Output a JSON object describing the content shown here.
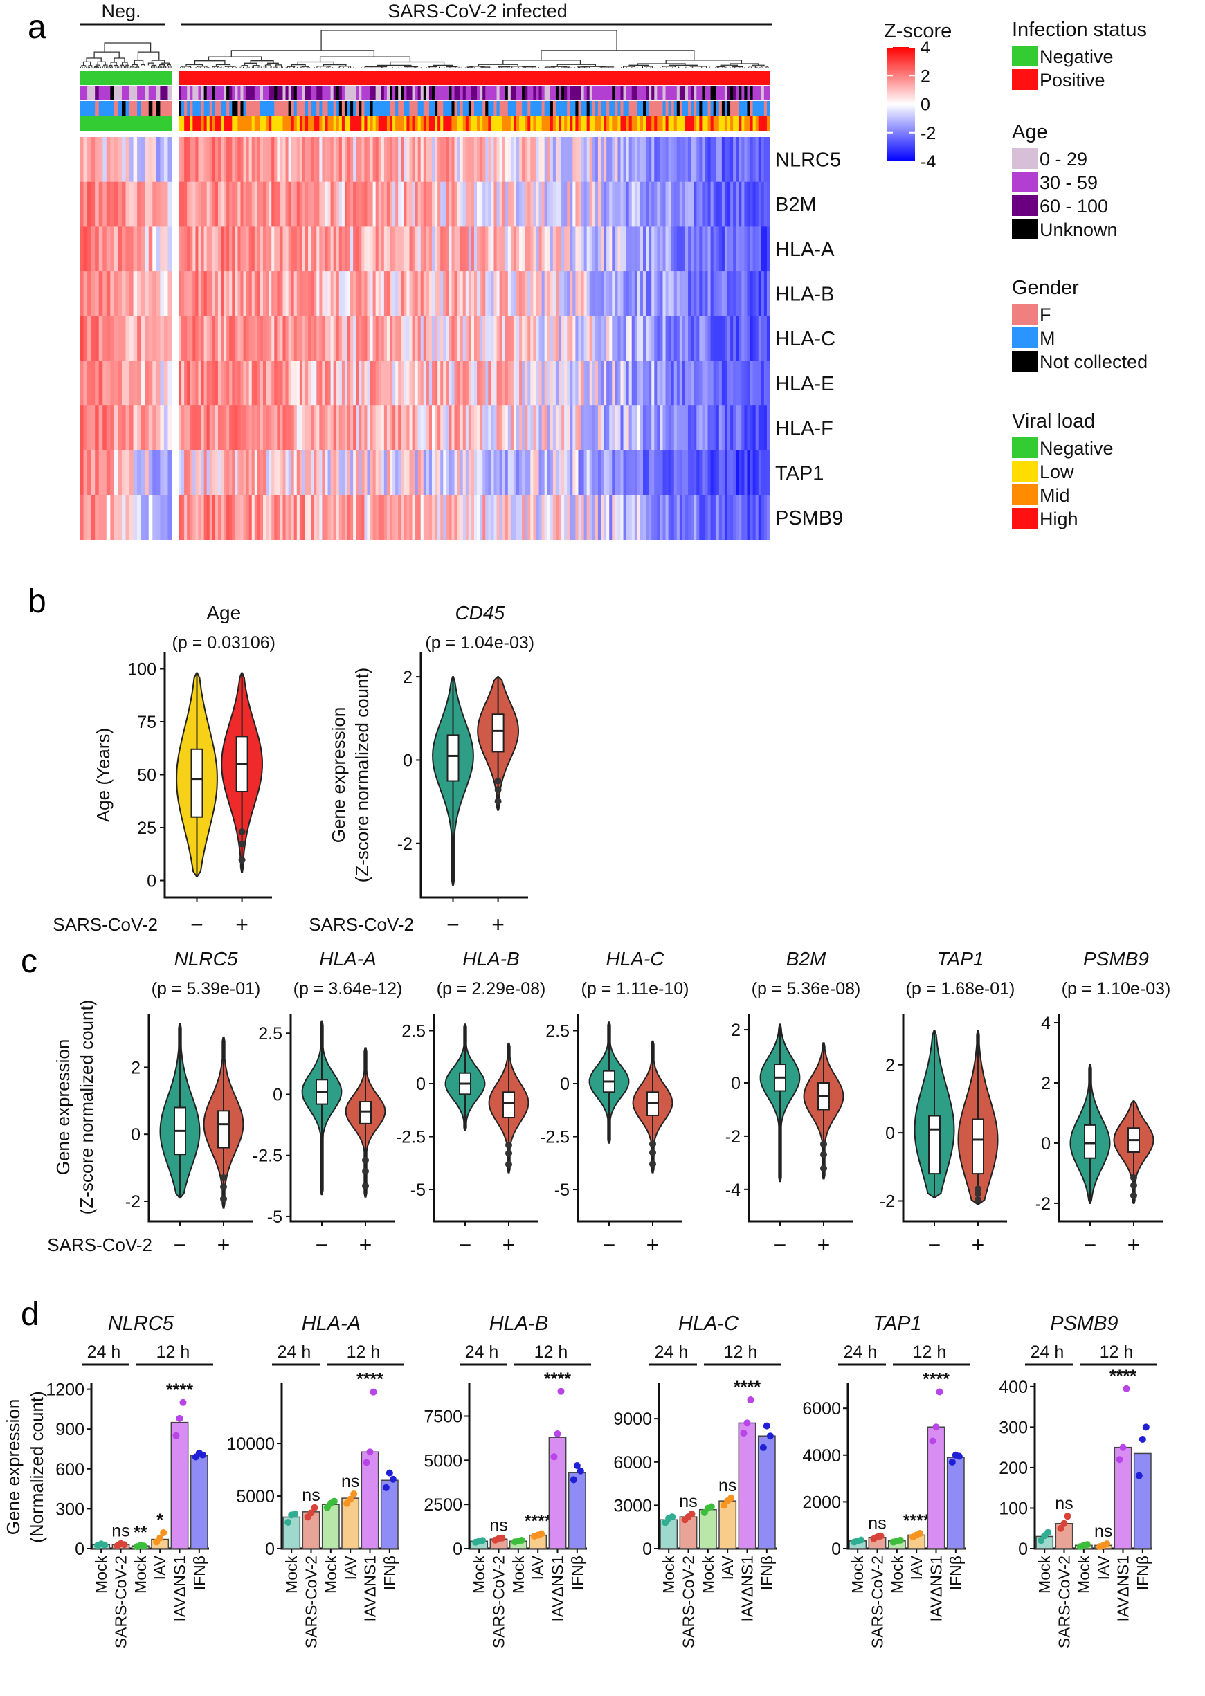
{
  "panels": {
    "a": "a",
    "b": "b",
    "c": "c",
    "d": "d"
  },
  "chart_data": [
    {
      "type": "heatmap",
      "panel": "a",
      "column_groups": [
        {
          "label": "Neg."
        },
        {
          "label": "SARS-CoV-2 infected"
        }
      ],
      "rows": [
        "NLRC5",
        "B2M",
        "HLA-A",
        "HLA-B",
        "HLA-C",
        "HLA-E",
        "HLA-F",
        "TAP1",
        "PSMB9"
      ],
      "colorbar": {
        "title": "Z-score",
        "ticks": [
          4,
          2,
          0,
          -2,
          -4
        ],
        "colors": [
          "#ff0000",
          "#ffffff",
          "#0000ff"
        ]
      },
      "legends": [
        {
          "title": "Infection status",
          "items": [
            {
              "label": "Negative",
              "color": "#33cc33"
            },
            {
              "label": "Positive",
              "color": "#ff1111"
            }
          ]
        },
        {
          "title": "Age",
          "items": [
            {
              "label": "0 - 29",
              "color": "#d8bfd8"
            },
            {
              "label": "30 - 59",
              "color": "#b23fd1"
            },
            {
              "label": "60 - 100",
              "color": "#6a0080"
            },
            {
              "label": "Unknown",
              "color": "#000000"
            }
          ]
        },
        {
          "title": "Gender",
          "items": [
            {
              "label": "F",
              "color": "#f08080"
            },
            {
              "label": "M",
              "color": "#2b95ff"
            },
            {
              "label": "Not collected",
              "color": "#000000"
            }
          ]
        },
        {
          "title": "Viral load",
          "items": [
            {
              "label": "Negative",
              "color": "#33cc33"
            },
            {
              "label": "Low",
              "color": "#ffdd00"
            },
            {
              "label": "Mid",
              "color": "#ff8c00"
            },
            {
              "label": "High",
              "color": "#ff1111"
            }
          ]
        }
      ]
    },
    {
      "type": "violin",
      "panel": "b",
      "plots": [
        {
          "title": "Age",
          "italic": false,
          "pvalue": "(p = 0.03106)",
          "ylabel": [
            "Age (Years)"
          ],
          "ylim": [
            -8,
            108
          ],
          "yticks": [
            "0",
            "25",
            "50",
            "75",
            "100"
          ],
          "ytick_values": [
            0,
            25,
            50,
            75,
            100
          ],
          "neg": {
            "median": 48,
            "q1": 30,
            "q3": 62,
            "min": 2,
            "max": 98
          },
          "pos": {
            "median": 55,
            "q1": 42,
            "q3": 68,
            "min": 4,
            "max": 98
          },
          "colors": [
            "#f7d117",
            "#ee2a2a"
          ]
        },
        {
          "title": "CD45",
          "italic": true,
          "pvalue": "(p = 1.04e-03)",
          "ylabel": [
            "Gene expression",
            "(Z-score normalized count)"
          ],
          "ylim": [
            -3.3,
            2.6
          ],
          "yticks": [
            "-2",
            "0",
            "2"
          ],
          "ytick_values": [
            -2,
            0,
            2
          ],
          "neg": {
            "median": 0.1,
            "q1": -0.5,
            "q3": 0.6,
            "min": -3.0,
            "max": 2.0
          },
          "pos": {
            "median": 0.7,
            "q1": 0.2,
            "q3": 1.1,
            "min": -1.2,
            "max": 2.0
          },
          "colors": [
            "#2f9e86",
            "#cf5a48"
          ]
        }
      ],
      "xlabel": "SARS-CoV-2",
      "xticks": [
        "−",
        "+"
      ]
    },
    {
      "type": "violin",
      "panel": "c",
      "plots": [
        {
          "title": "NLRC5",
          "pvalue": "(p = 5.39e-01)",
          "ylim": [
            -2.6,
            3.6
          ],
          "yticks": [
            "-2",
            "0",
            "2"
          ],
          "ytick_values": [
            -2,
            0,
            2
          ],
          "neg": {
            "median": 0.1,
            "q1": -0.6,
            "q3": 0.8,
            "min": -1.9,
            "max": 3.3
          },
          "pos": {
            "median": 0.3,
            "q1": -0.4,
            "q3": 0.7,
            "min": -2.2,
            "max": 2.9
          }
        },
        {
          "title": "HLA-A",
          "pvalue": "(p = 3.64e-12)",
          "ylim": [
            -5.2,
            3.3
          ],
          "yticks": [
            "2.5",
            "0",
            "-2.5",
            "-5"
          ],
          "ytick_values": [
            2.5,
            0,
            -2.5,
            -5
          ],
          "neg": {
            "median": 0.1,
            "q1": -0.4,
            "q3": 0.6,
            "min": -4.1,
            "max": 3.0
          },
          "pos": {
            "median": -0.7,
            "q1": -1.2,
            "q3": -0.3,
            "min": -4.2,
            "max": 1.9
          }
        },
        {
          "title": "HLA-B",
          "pvalue": "(p = 2.29e-08)",
          "ylim": [
            -6.5,
            3.3
          ],
          "yticks": [
            "2.5",
            "0",
            "-2.5",
            "-5"
          ],
          "ytick_values": [
            2.5,
            0,
            -2.5,
            -5
          ],
          "neg": {
            "median": 0.0,
            "q1": -0.5,
            "q3": 0.5,
            "min": -2.2,
            "max": 2.8
          },
          "pos": {
            "median": -0.9,
            "q1": -1.6,
            "q3": -0.4,
            "min": -4.2,
            "max": 1.9
          }
        },
        {
          "title": "HLA-C",
          "pvalue": "(p = 1.11e-10)",
          "ylim": [
            -6.5,
            3.3
          ],
          "yticks": [
            "2.5",
            "0",
            "-2.5",
            "-5"
          ],
          "ytick_values": [
            2.5,
            0,
            -2.5,
            -5
          ],
          "neg": {
            "median": 0.1,
            "q1": -0.4,
            "q3": 0.6,
            "min": -2.8,
            "max": 2.9
          },
          "pos": {
            "median": -0.9,
            "q1": -1.5,
            "q3": -0.4,
            "min": -4.2,
            "max": 2.0
          }
        },
        {
          "title": "B2M",
          "pvalue": "(p = 5.36e-08)",
          "ylim": [
            -5.2,
            2.6
          ],
          "yticks": [
            "2",
            "0",
            "-2",
            "-4"
          ],
          "ytick_values": [
            2,
            0,
            -2,
            -4
          ],
          "neg": {
            "median": 0.2,
            "q1": -0.3,
            "q3": 0.7,
            "min": -3.7,
            "max": 2.2
          },
          "pos": {
            "median": -0.5,
            "q1": -1.0,
            "q3": 0.0,
            "min": -3.6,
            "max": 1.5
          }
        },
        {
          "title": "TAP1",
          "pvalue": "(p = 1.68e-01)",
          "ylim": [
            -2.6,
            3.5
          ],
          "yticks": [
            "2",
            "0",
            "-2"
          ],
          "ytick_values": [
            2,
            0,
            -2
          ],
          "neg": {
            "median": 0.1,
            "q1": -1.2,
            "q3": 0.5,
            "min": -1.9,
            "max": 3.0
          },
          "pos": {
            "median": -0.2,
            "q1": -1.2,
            "q3": 0.4,
            "min": -2.1,
            "max": 3.0
          }
        },
        {
          "title": "PSMB9",
          "pvalue": "(p = 1.10e-03)",
          "ylim": [
            -2.6,
            4.3
          ],
          "yticks": [
            "4",
            "2",
            "0",
            "-2"
          ],
          "ytick_values": [
            4,
            2,
            0,
            -2
          ],
          "neg": {
            "median": 0.0,
            "q1": -0.5,
            "q3": 0.6,
            "min": -2.0,
            "max": 2.6
          },
          "pos": {
            "median": 0.1,
            "q1": -0.3,
            "q3": 0.5,
            "min": -2.0,
            "max": 1.4
          }
        }
      ],
      "ylabel": [
        "Gene expression",
        "(Z-score normalized count)"
      ],
      "xlabel": "SARS-CoV-2",
      "xticks": [
        "−",
        "+"
      ],
      "colors": [
        "#2f9e86",
        "#cf5a48"
      ]
    },
    {
      "type": "bar",
      "panel": "d",
      "categories": [
        "Mock",
        "SARS-CoV-2",
        "Mock",
        "IAV",
        "IAVΔNS1",
        "IFNβ"
      ],
      "category_colors": [
        "#222222",
        "#cc0000",
        "#222222",
        "#222222",
        "#222222",
        "#222222"
      ],
      "bar_colors": [
        "#9fd8cc",
        "#e8a497",
        "#b9e6a9",
        "#f8cd8c",
        "#d88df3",
        "#8f8cf5"
      ],
      "dot_colors": [
        "#2fae92",
        "#d9443a",
        "#3cbd3c",
        "#f7931e",
        "#b845e8",
        "#1f1fd8"
      ],
      "time_labels": [
        "24 h",
        "12 h"
      ],
      "ylabel": [
        "Gene expression",
        "(Normalized count)"
      ],
      "plots": [
        {
          "title": "NLRC5",
          "ylim": [
            0,
            1250
          ],
          "yticks": [
            "0",
            "300",
            "600",
            "900",
            "1200"
          ],
          "ytick_values": [
            0,
            300,
            600,
            900,
            1200
          ],
          "values": [
            30,
            30,
            20,
            70,
            950,
            700
          ],
          "points": [
            [
              25,
              35,
              28
            ],
            [
              22,
              38,
              30
            ],
            [
              15,
              25,
              20
            ],
            [
              50,
              80,
              120
            ],
            [
              850,
              980,
              1100
            ],
            [
              690,
              720,
              705
            ]
          ],
          "annotations": [
            "",
            "ns",
            "**",
            "*",
            "****",
            ""
          ]
        },
        {
          "title": "HLA-A",
          "ylim": [
            0,
            15800
          ],
          "yticks": [
            "0",
            "5000",
            "10000"
          ],
          "ytick_values": [
            0,
            5000,
            10000
          ],
          "values": [
            3000,
            3500,
            4200,
            4800,
            9200,
            6500
          ],
          "points": [
            [
              2500,
              3200,
              3300
            ],
            [
              3000,
              3400,
              3900
            ],
            [
              3900,
              4300,
              4500
            ],
            [
              4300,
              4700,
              5200
            ],
            [
              8200,
              9200,
              14900
            ],
            [
              5800,
              7200,
              6600
            ]
          ],
          "annotations": [
            "",
            "ns",
            "",
            "ns",
            "****",
            ""
          ]
        },
        {
          "title": "HLA-B",
          "ylim": [
            0,
            9400
          ],
          "yticks": [
            "0",
            "2500",
            "5000",
            "7500"
          ],
          "ytick_values": [
            0,
            2500,
            5000,
            7500
          ],
          "values": [
            420,
            540,
            420,
            760,
            6300,
            4300
          ],
          "points": [
            [
              360,
              420,
              460
            ],
            [
              480,
              560,
              600
            ],
            [
              380,
              430,
              470
            ],
            [
              700,
              760,
              840
            ],
            [
              5200,
              6500,
              8900
            ],
            [
              3900,
              4700,
              4400
            ]
          ],
          "annotations": [
            "",
            "ns",
            "",
            "****",
            "****",
            ""
          ]
        },
        {
          "title": "HLA-C",
          "ylim": [
            0,
            11500
          ],
          "yticks": [
            "0",
            "3000",
            "6000",
            "9000"
          ],
          "ytick_values": [
            0,
            3000,
            6000,
            9000
          ],
          "values": [
            2000,
            2200,
            2700,
            3300,
            8700,
            7800
          ],
          "points": [
            [
              1800,
              2100,
              2200
            ],
            [
              2000,
              2200,
              2400
            ],
            [
              2500,
              2800,
              2900
            ],
            [
              3000,
              3300,
              3500
            ],
            [
              8000,
              8700,
              10300
            ],
            [
              7000,
              8500,
              7800
            ]
          ],
          "annotations": [
            "",
            "ns",
            "",
            "ns",
            "****",
            ""
          ]
        },
        {
          "title": "TAP1",
          "ylim": [
            0,
            7100
          ],
          "yticks": [
            "0",
            "2000",
            "4000",
            "6000"
          ],
          "ytick_values": [
            0,
            2000,
            4000,
            6000
          ],
          "values": [
            330,
            480,
            330,
            580,
            5200,
            3900
          ],
          "points": [
            [
              280,
              330,
              370
            ],
            [
              420,
              500,
              540
            ],
            [
              280,
              330,
              360
            ],
            [
              500,
              580,
              650
            ],
            [
              4600,
              5200,
              6700
            ],
            [
              3700,
              4000,
              3950
            ]
          ],
          "annotations": [
            "",
            "ns",
            "",
            "****",
            "****",
            ""
          ]
        },
        {
          "title": "PSMB9",
          "ylim": [
            0,
            410
          ],
          "yticks": [
            "0",
            "100",
            "200",
            "300",
            "400"
          ],
          "ytick_values": [
            0,
            100,
            200,
            300,
            400
          ],
          "values": [
            30,
            62,
            8,
            8,
            250,
            235
          ],
          "points": [
            [
              20,
              32,
              40
            ],
            [
              50,
              62,
              80
            ],
            [
              5,
              8,
              10
            ],
            [
              5,
              8,
              12
            ],
            [
              220,
              250,
              395
            ],
            [
              180,
              270,
              300
            ]
          ],
          "annotations": [
            "",
            "ns",
            "",
            "ns",
            "****",
            ""
          ]
        }
      ]
    }
  ]
}
